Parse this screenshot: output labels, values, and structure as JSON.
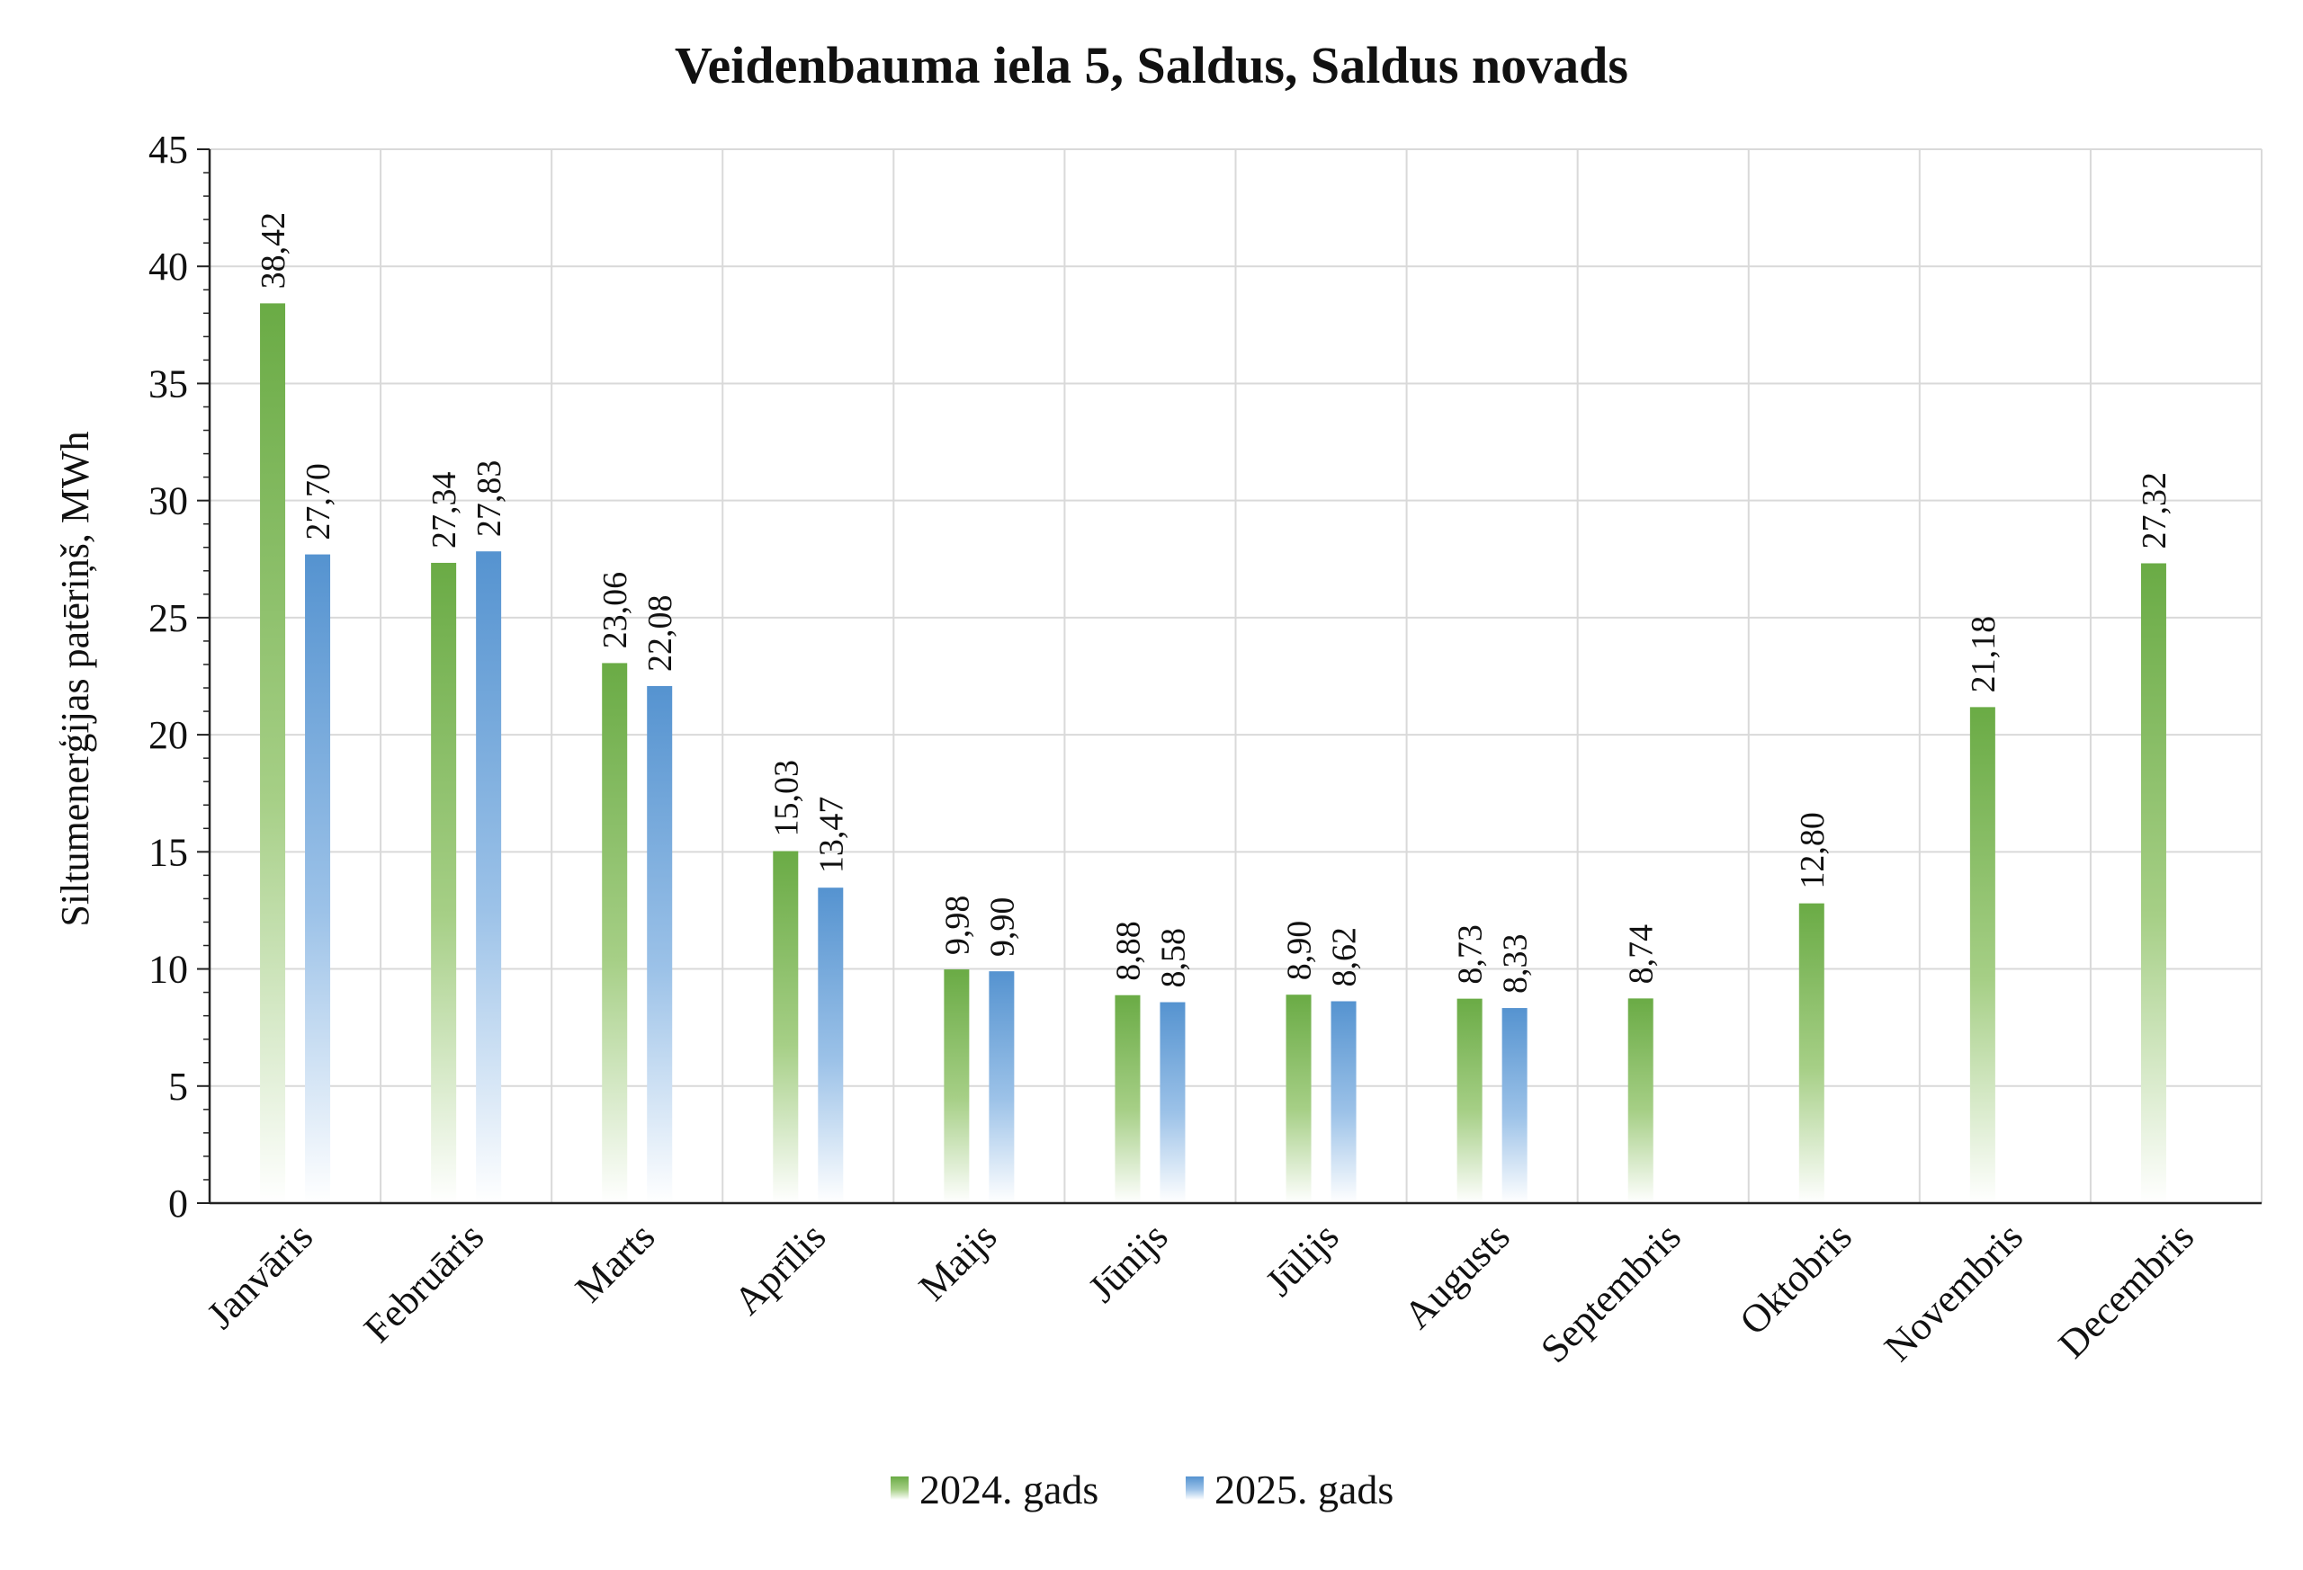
{
  "chart_data": {
    "type": "bar",
    "title": "Veidenbauma iela 5, Saldus, Saldus novads",
    "ylabel": "Siltumenerģijas patēriņš, MWh",
    "xlabel": "",
    "ylim": [
      0,
      45
    ],
    "yticks": [
      "0",
      "5",
      "10",
      "15",
      "20",
      "25",
      "30",
      "35",
      "40",
      "45"
    ],
    "grid": true,
    "legend_position": "bottom",
    "categories": [
      "Janvāris",
      "Februāris",
      "Marts",
      "Aprīlis",
      "Maijs",
      "Jūnijs",
      "Jūlijs",
      "Augusts",
      "Septembris",
      "Oktobris",
      "Novembris",
      "Decembris"
    ],
    "series": [
      {
        "name": "2024. gads",
        "color": "#70ad47",
        "values": [
          38.42,
          27.34,
          23.06,
          15.03,
          9.98,
          8.88,
          8.9,
          8.73,
          8.74,
          12.8,
          21.18,
          27.32
        ],
        "labels": [
          "38,42",
          "27,34",
          "23,06",
          "15,03",
          "9,98",
          "8,88",
          "8,90",
          "8,73",
          "8,74",
          "12,80",
          "21,18",
          "27,32"
        ]
      },
      {
        "name": "2025. gads",
        "color": "#5b9bd5",
        "values": [
          27.7,
          27.83,
          22.08,
          13.47,
          9.9,
          8.58,
          8.62,
          8.33,
          null,
          null,
          null,
          null
        ],
        "labels": [
          "27,70",
          "27,83",
          "22,08",
          "13,47",
          "9,90",
          "8,58",
          "8,62",
          "8,33",
          "",
          "",
          "",
          ""
        ]
      }
    ]
  }
}
